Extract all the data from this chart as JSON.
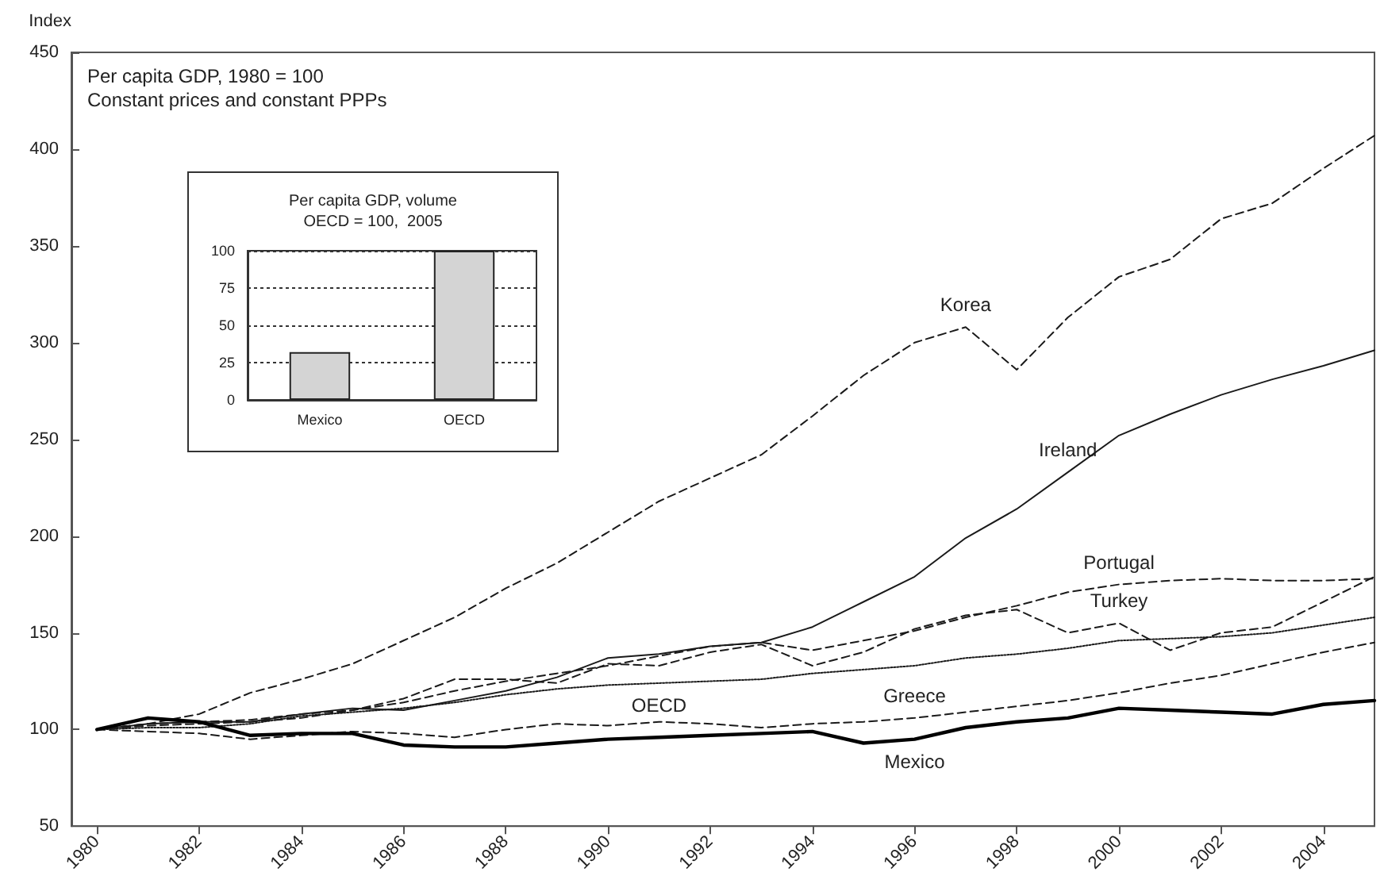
{
  "chart_data": [
    {
      "type": "line",
      "ylabel": "Index",
      "x": [
        1980,
        1981,
        1982,
        1983,
        1984,
        1985,
        1986,
        1987,
        1988,
        1989,
        1990,
        1991,
        1992,
        1993,
        1994,
        1995,
        1996,
        1997,
        1998,
        1999,
        2000,
        2001,
        2002,
        2003,
        2004,
        2005
      ],
      "xlim": [
        1979.5,
        2005
      ],
      "xticks": [
        1980,
        1982,
        1984,
        1986,
        1988,
        1990,
        1992,
        1994,
        1996,
        1998,
        2000,
        2002,
        2004
      ],
      "ylim": [
        50,
        450
      ],
      "yticks": [
        50,
        100,
        150,
        200,
        250,
        300,
        350,
        400,
        450
      ],
      "grid": false,
      "marker": "none",
      "series": [
        {
          "color": "#1a1a1a",
          "line_style": "dashed",
          "values": [
            100,
            103,
            108,
            119,
            126,
            134,
            146,
            158,
            173,
            186,
            202,
            218,
            230,
            242,
            262,
            283,
            300,
            308,
            286,
            313,
            334,
            343,
            364,
            372,
            390,
            407
          ]
        },
        {
          "color": "#1a1a1a",
          "line_style": "solid",
          "values": [
            100,
            103,
            104,
            104,
            108,
            111,
            110,
            115,
            120,
            127,
            137,
            139,
            143,
            145,
            153,
            166,
            179,
            199,
            214,
            233,
            252,
            263,
            273,
            281,
            288,
            296
          ]
        },
        {
          "color": "#1a1a1a",
          "line_style": "dashed",
          "values": [
            100,
            102,
            103,
            104,
            106,
            110,
            114,
            120,
            125,
            129,
            133,
            138,
            143,
            145,
            141,
            146,
            151,
            158,
            164,
            171,
            175,
            177,
            178,
            177,
            177,
            178
          ]
        },
        {
          "color": "#1a1a1a",
          "line_style": "dashed",
          "values": [
            100,
            103,
            104,
            105,
            108,
            110,
            116,
            126,
            126,
            124,
            134,
            133,
            140,
            144,
            133,
            140,
            152,
            159,
            162,
            150,
            155,
            141,
            150,
            153,
            166,
            179
          ]
        },
        {
          "color": "#1a1a1a",
          "line_style": "dotted",
          "values": [
            100,
            101,
            101,
            103,
            107,
            109,
            111,
            114,
            118,
            121,
            123,
            124,
            125,
            126,
            129,
            131,
            133,
            137,
            139,
            142,
            146,
            147,
            148,
            150,
            154,
            158
          ]
        },
        {
          "color": "#1a1a1a",
          "line_style": "dashed",
          "values": [
            100,
            99,
            98,
            95,
            97,
            99,
            98,
            96,
            100,
            103,
            102,
            104,
            103,
            101,
            103,
            104,
            106,
            109,
            112,
            115,
            119,
            124,
            128,
            134,
            140,
            145
          ]
        },
        {
          "color": "#000000",
          "line_style": "solid",
          "values": [
            100,
            106,
            104,
            97,
            98,
            98,
            92,
            91,
            91,
            93,
            95,
            96,
            97,
            98,
            99,
            93,
            95,
            101,
            104,
            106,
            111,
            110,
            109,
            108,
            113,
            115
          ]
        }
      ],
      "annotations": [
        "Per capita GDP, 1980 = 100",
        "Constant prices and constant PPPs",
        {
          "text": "Korea",
          "x": 1997,
          "y": 308
        },
        {
          "text": "Ireland",
          "x": 1999,
          "y": 233
        },
        {
          "text": "Portugal",
          "x": 2000,
          "y": 175
        },
        {
          "text": "Turkey",
          "x": 2000,
          "y": 155
        },
        {
          "text": "OECD",
          "x": 1991,
          "y": 124
        },
        {
          "text": "Greece",
          "x": 1996,
          "y": 106
        },
        {
          "text": "Mexico",
          "x": 1996,
          "y": 95
        }
      ]
    },
    {
      "type": "bar",
      "title": "Per capita GDP, volume",
      "subtitle": "OECD = 100,  2005",
      "categories": [
        "Mexico",
        "OECD"
      ],
      "values": [
        32,
        100
      ],
      "color": "#d4d4d4",
      "ylim": [
        0,
        100
      ],
      "yticks": [
        0,
        25,
        50,
        75,
        100
      ],
      "grid": "y"
    }
  ]
}
